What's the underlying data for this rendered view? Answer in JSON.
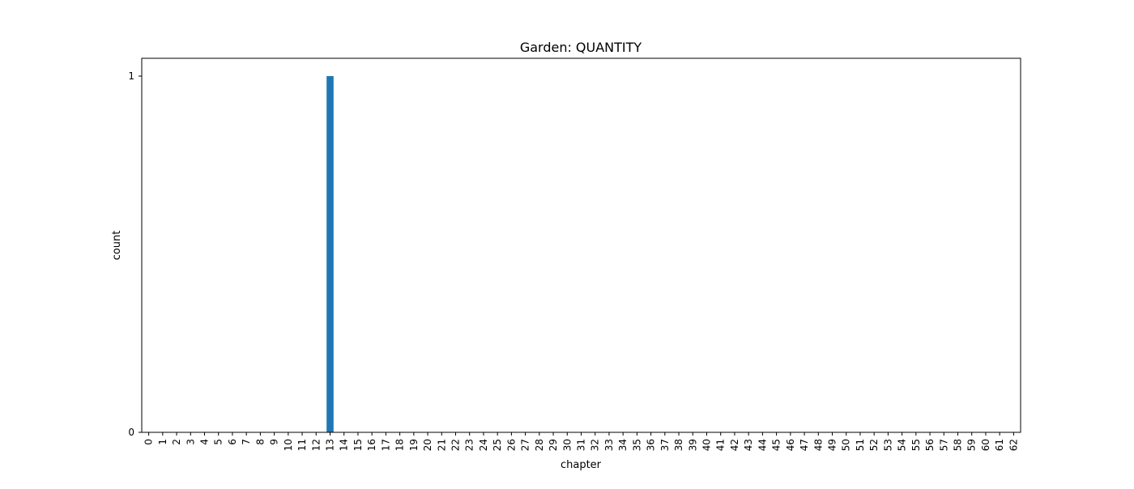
{
  "chart_data": {
    "type": "bar",
    "title": "Garden: QUANTITY",
    "xlabel": "chapter",
    "ylabel": "count",
    "categories": [
      "0",
      "1",
      "2",
      "3",
      "4",
      "5",
      "6",
      "7",
      "8",
      "9",
      "10",
      "11",
      "12",
      "13",
      "14",
      "15",
      "16",
      "17",
      "18",
      "19",
      "20",
      "21",
      "22",
      "23",
      "24",
      "25",
      "26",
      "27",
      "28",
      "29",
      "30",
      "31",
      "32",
      "33",
      "34",
      "35",
      "36",
      "37",
      "38",
      "39",
      "40",
      "41",
      "42",
      "43",
      "44",
      "45",
      "46",
      "47",
      "48",
      "49",
      "50",
      "51",
      "52",
      "53",
      "54",
      "55",
      "56",
      "57",
      "58",
      "59",
      "60",
      "61",
      "62"
    ],
    "values": [
      0,
      0,
      0,
      0,
      0,
      0,
      0,
      0,
      0,
      0,
      0,
      0,
      0,
      1,
      0,
      0,
      0,
      0,
      0,
      0,
      0,
      0,
      0,
      0,
      0,
      0,
      0,
      0,
      0,
      0,
      0,
      0,
      0,
      0,
      0,
      0,
      0,
      0,
      0,
      0,
      0,
      0,
      0,
      0,
      0,
      0,
      0,
      0,
      0,
      0,
      0,
      0,
      0,
      0,
      0,
      0,
      0,
      0,
      0,
      0,
      0,
      0,
      0
    ],
    "ylim": [
      0,
      1.05
    ],
    "yticks": [
      "0",
      "1"
    ],
    "grid": false,
    "bar_color": "#1f77b4"
  }
}
